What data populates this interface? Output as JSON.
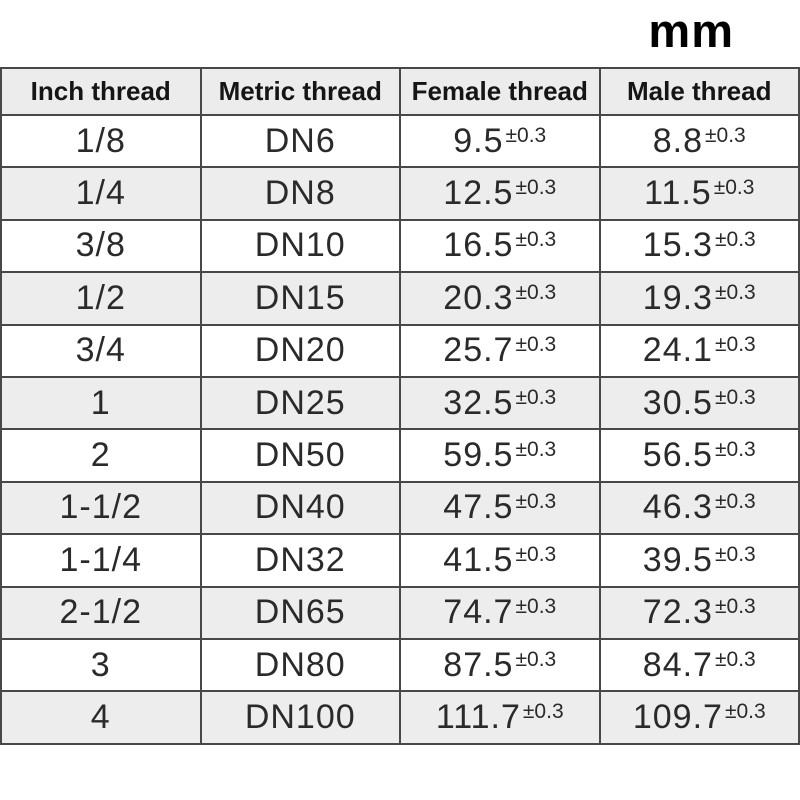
{
  "page": {
    "unit_label": "mm"
  },
  "table": {
    "headers": [
      "Inch thread",
      "Metric thread",
      "Female thread",
      "Male thread"
    ],
    "rows": [
      {
        "inch": "1/8",
        "metric": "DN6",
        "female": "9.5",
        "female_tol": "±0.3",
        "male": "8.8",
        "male_tol": "±0.3"
      },
      {
        "inch": "1/4",
        "metric": "DN8",
        "female": "12.5",
        "female_tol": "±0.3",
        "male": "11.5",
        "male_tol": "±0.3"
      },
      {
        "inch": "3/8",
        "metric": "DN10",
        "female": "16.5",
        "female_tol": "±0.3",
        "male": "15.3",
        "male_tol": "±0.3"
      },
      {
        "inch": "1/2",
        "metric": "DN15",
        "female": "20.3",
        "female_tol": "±0.3",
        "male": "19.3",
        "male_tol": "±0.3"
      },
      {
        "inch": "3/4",
        "metric": "DN20",
        "female": "25.7",
        "female_tol": "±0.3",
        "male": "24.1",
        "male_tol": "±0.3"
      },
      {
        "inch": "1",
        "metric": "DN25",
        "female": "32.5",
        "female_tol": "±0.3",
        "male": "30.5",
        "male_tol": "±0.3"
      },
      {
        "inch": "2",
        "metric": "DN50",
        "female": "59.5",
        "female_tol": "±0.3",
        "male": "56.5",
        "male_tol": "±0.3"
      },
      {
        "inch": "1-1/2",
        "metric": "DN40",
        "female": "47.5",
        "female_tol": "±0.3",
        "male": "46.3",
        "male_tol": "±0.3"
      },
      {
        "inch": "1-1/4",
        "metric": "DN32",
        "female": "41.5",
        "female_tol": "±0.3",
        "male": "39.5",
        "male_tol": "±0.3"
      },
      {
        "inch": "2-1/2",
        "metric": "DN65",
        "female": "74.7",
        "female_tol": "±0.3",
        "male": "72.3",
        "male_tol": "±0.3"
      },
      {
        "inch": "3",
        "metric": "DN80",
        "female": "87.5",
        "female_tol": "±0.3",
        "male": "84.7",
        "male_tol": "±0.3"
      },
      {
        "inch": "4",
        "metric": "DN100",
        "female": "111.7",
        "female_tol": "±0.3",
        "male": "109.7",
        "male_tol": "±0.3"
      }
    ]
  },
  "chart_data": {
    "type": "table",
    "title": "mm",
    "columns": [
      "Inch thread",
      "Metric thread",
      "Female thread",
      "Male thread"
    ],
    "rows": [
      [
        "1/8",
        "DN6",
        "9.5 ±0.3",
        "8.8 ±0.3"
      ],
      [
        "1/4",
        "DN8",
        "12.5 ±0.3",
        "11.5 ±0.3"
      ],
      [
        "3/8",
        "DN10",
        "16.5 ±0.3",
        "15.3 ±0.3"
      ],
      [
        "1/2",
        "DN15",
        "20.3 ±0.3",
        "19.3 ±0.3"
      ],
      [
        "3/4",
        "DN20",
        "25.7 ±0.3",
        "24.1 ±0.3"
      ],
      [
        "1",
        "DN25",
        "32.5 ±0.3",
        "30.5 ±0.3"
      ],
      [
        "2",
        "DN50",
        "59.5 ±0.3",
        "56.5 ±0.3"
      ],
      [
        "1-1/2",
        "DN40",
        "47.5 ±0.3",
        "46.3 ±0.3"
      ],
      [
        "1-1/4",
        "DN32",
        "41.5 ±0.3",
        "39.5 ±0.3"
      ],
      [
        "2-1/2",
        "DN65",
        "74.7 ±0.3",
        "72.3 ±0.3"
      ],
      [
        "3",
        "DN80",
        "87.5 ±0.3",
        "84.7 ±0.3"
      ],
      [
        "4",
        "DN100",
        "111.7 ±0.3",
        "109.7 ±0.3"
      ]
    ],
    "layout": {
      "legend": "none",
      "header_background": "#ececec",
      "alt_row_background": "#ededed",
      "border_color": "#484848",
      "tolerance_style": "superscript"
    }
  }
}
